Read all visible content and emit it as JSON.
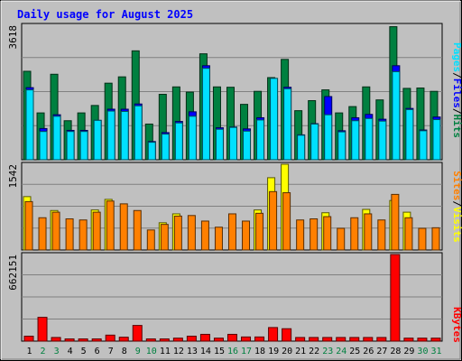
{
  "chart_data": {
    "title": "Daily usage for August 2025",
    "type": "bar",
    "categories": [
      "1",
      "2",
      "3",
      "4",
      "5",
      "6",
      "7",
      "8",
      "9",
      "10",
      "11",
      "12",
      "13",
      "14",
      "15",
      "16",
      "17",
      "18",
      "19",
      "20",
      "21",
      "22",
      "23",
      "24",
      "25",
      "26",
      "27",
      "28",
      "29",
      "30",
      "31"
    ],
    "weekend_days": [
      "2",
      "3",
      "9",
      "10",
      "16",
      "17",
      "23",
      "24",
      "30",
      "31"
    ],
    "panels": [
      {
        "id": "hits",
        "max_label": "3618",
        "ylim": [
          0,
          3618
        ],
        "series": [
          {
            "name": "Hits",
            "color": "#008040",
            "values": [
              2380,
              1260,
              2300,
              1050,
              1260,
              1460,
              2060,
              2230,
              2930,
              960,
              1760,
              1960,
              1820,
              2850,
              1960,
              1950,
              1490,
              1840,
              2210,
              2700,
              1320,
              1590,
              1880,
              1260,
              1430,
              1960,
              1610,
              3580,
              1920,
              1930,
              1840
            ]
          },
          {
            "name": "Files",
            "color": "#0000ff",
            "values": [
              1940,
              840,
              1210,
              790,
              790,
              1060,
              1360,
              1360,
              1500,
              490,
              730,
              1030,
              1290,
              2530,
              860,
              880,
              830,
              1130,
              1710,
              1950,
              670,
              970,
              1700,
              780,
              1130,
              1220,
              1090,
              2530,
              1380,
              800,
              1150
            ]
          },
          {
            "name": "Pages",
            "color": "#00e0ff",
            "values": [
              1880,
              760,
              1170,
              760,
              760,
              1060,
              1310,
              1300,
              1450,
              470,
              690,
              990,
              1170,
              2460,
              820,
              870,
              770,
              1070,
              2190,
              1910,
              660,
              960,
              1210,
              750,
              1050,
              1110,
              1040,
              2370,
              1350,
              780,
              1080
            ]
          }
        ]
      },
      {
        "id": "visits",
        "max_label": "1542",
        "ylim": [
          0,
          1542
        ],
        "series": [
          {
            "name": "Visits",
            "color": "#ffff00",
            "values": [
              960,
              0,
              710,
              0,
              0,
              720,
              910,
              0,
              0,
              0,
              490,
              650,
              0,
              0,
              0,
              0,
              0,
              720,
              1300,
              1542,
              0,
              0,
              670,
              0,
              0,
              730,
              0,
              890,
              680,
              0,
              0
            ]
          },
          {
            "name": "Sites",
            "color": "#ff8000",
            "values": [
              870,
              580,
              680,
              560,
              540,
              680,
              880,
              830,
              710,
              360,
              460,
              610,
              620,
              520,
              410,
              650,
              520,
              660,
              1050,
              1030,
              540,
              560,
              600,
              390,
              580,
              650,
              540,
              1000,
              580,
              390,
              400
            ]
          }
        ]
      },
      {
        "id": "kbytes",
        "max_label": "662151",
        "ylim": [
          0,
          662151
        ],
        "series": [
          {
            "name": "KBytes",
            "color": "#ff0000",
            "values": [
              38000,
              182000,
              28000,
              17000,
              17000,
              17000,
              46000,
              30000,
              120000,
              17000,
              17000,
              23000,
              38000,
              52000,
              23000,
              52000,
              32000,
              32000,
              104000,
              95000,
              28000,
              28000,
              28000,
              28000,
              28000,
              28000,
              28000,
              662151,
              23000,
              23000,
              23000
            ]
          }
        ]
      }
    ],
    "legend": {
      "top_panel": [
        "Pages",
        "/",
        "Files",
        "/",
        "Hits"
      ],
      "middle_panel": [
        "Sites",
        "/",
        "Visits"
      ],
      "bottom_panel": [
        "KBytes"
      ]
    },
    "legend_placement": "right (rotated)",
    "grid": true
  }
}
